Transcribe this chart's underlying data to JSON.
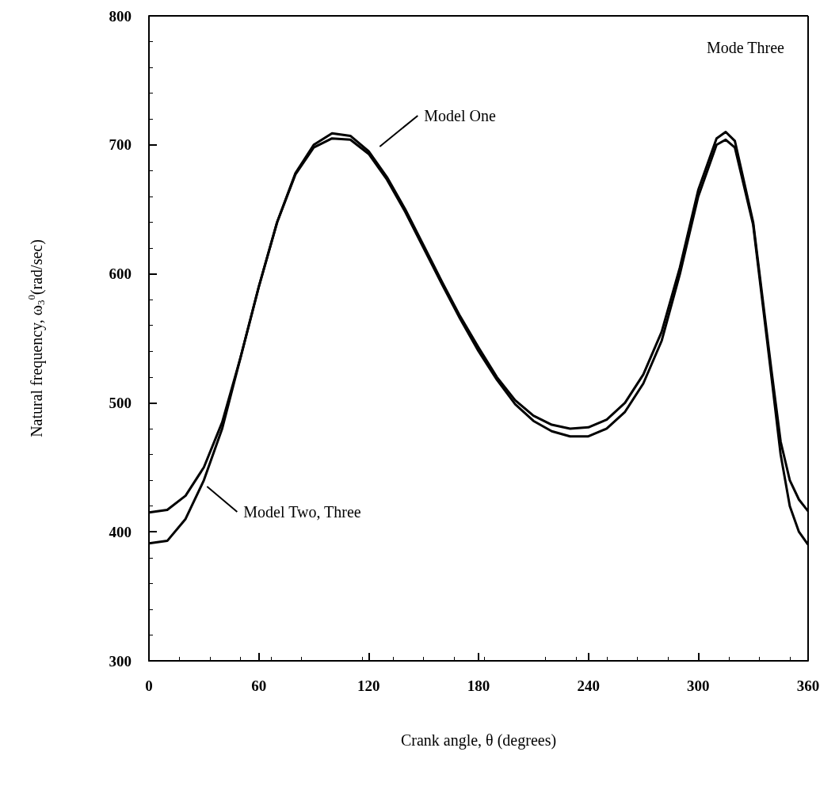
{
  "chart_data": {
    "type": "line",
    "xlabel": "Crank angle, θ (degrees)",
    "ylabel": "Natural frequency, ω$_{3}$$^{0}$(rad/sec)",
    "annotations": [
      "Mode Three"
    ],
    "xlim": [
      0,
      360
    ],
    "ylim": [
      300,
      800
    ],
    "xticks": [
      0,
      60,
      120,
      180,
      240,
      300,
      360
    ],
    "yticks": [
      300,
      400,
      500,
      600,
      700,
      800
    ],
    "grid": false,
    "legend": false,
    "marker": "none",
    "line_style": "solid",
    "x": [
      0,
      10,
      20,
      30,
      40,
      50,
      60,
      70,
      80,
      90,
      100,
      110,
      120,
      130,
      140,
      150,
      160,
      170,
      180,
      190,
      200,
      210,
      220,
      230,
      240,
      250,
      260,
      270,
      280,
      290,
      300,
      310,
      315,
      320,
      330,
      340,
      345,
      350,
      355,
      360
    ],
    "series": [
      {
        "name": "Model One",
        "color": "#000000",
        "values": [
          415,
          417,
          428,
          450,
          485,
          535,
          590,
          640,
          678,
          700,
          709,
          707,
          695,
          675,
          650,
          622,
          594,
          567,
          543,
          520,
          502,
          490,
          483,
          480,
          481,
          487,
          500,
          522,
          555,
          605,
          665,
          705,
          710,
          703,
          640,
          525,
          470,
          440,
          425,
          416
        ]
      },
      {
        "name": "Model Two, Three",
        "color": "#000000",
        "values": [
          391,
          393,
          410,
          440,
          480,
          535,
          590,
          640,
          677,
          698,
          705,
          704,
          693,
          673,
          648,
          620,
          592,
          565,
          540,
          518,
          499,
          486,
          478,
          474,
          474,
          480,
          493,
          515,
          548,
          600,
          660,
          700,
          704,
          698,
          638,
          520,
          460,
          420,
          400,
          390
        ]
      }
    ]
  }
}
